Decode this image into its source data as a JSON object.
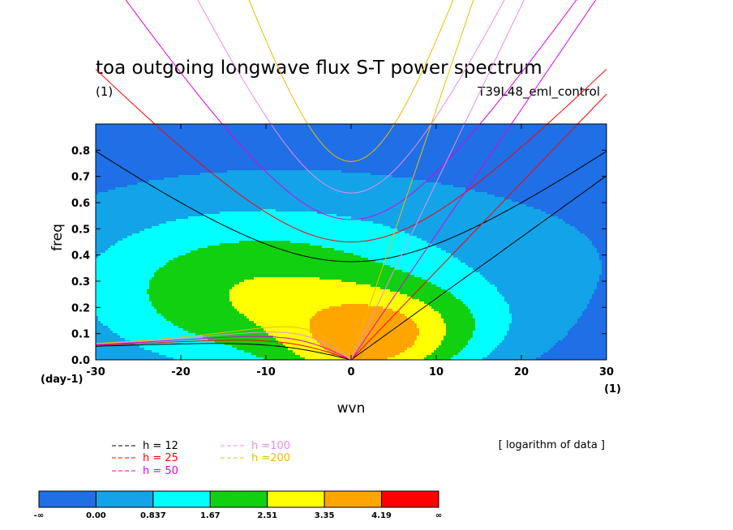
{
  "chart_data": {
    "type": "heatmap",
    "title": "toa outgoing longwave flux S-T power spectrum",
    "subtitle_left": "(1)",
    "subtitle_right": "T39L48_eml_control",
    "xlabel": "wvn",
    "ylabel": "freq",
    "x_unit": "(1)",
    "y_unit": "(day-1)",
    "xlim": [
      -30,
      30
    ],
    "ylim": [
      0,
      0.9
    ],
    "x_ticks": [
      -30,
      -20,
      -10,
      0,
      10,
      20,
      30
    ],
    "x_tick_labels": [
      "-30",
      "-20",
      "-10",
      "0",
      "10",
      "20",
      "30"
    ],
    "y_ticks": [
      0.0,
      0.1,
      0.2,
      0.3,
      0.4,
      0.5,
      0.6,
      0.7,
      0.8
    ],
    "y_tick_labels": [
      "0.0",
      "0.1",
      "0.2",
      "0.3",
      "0.4",
      "0.5",
      "0.6",
      "0.7",
      "0.8"
    ],
    "note": "[ logarithm of data ]",
    "contour_levels": [
      "-∞",
      "0.00",
      "0.837",
      "1.67",
      "2.51",
      "3.35",
      "4.19",
      "∞"
    ],
    "level_colors": [
      "#1f6fe6",
      "#12a3e8",
      "#00ffff",
      "#10d010",
      "#ffff00",
      "#ffa500",
      "#ff0000"
    ],
    "field": {
      "type": "gaussian-mix",
      "base": -0.7,
      "components": [
        {
          "x0": 2,
          "y0": 0.04,
          "sx": 7,
          "sy": 0.14,
          "amp": 2.55
        },
        {
          "x0": -12,
          "y0": 0.22,
          "sx": 14,
          "sy": 0.22,
          "amp": 2.2
        },
        {
          "x0": 10,
          "y0": 0.12,
          "sx": 8,
          "sy": 0.12,
          "amp": 1.1
        },
        {
          "x0": -3,
          "y0": 0.38,
          "sx": 30,
          "sy": 0.28,
          "amp": 1.2
        }
      ]
    },
    "dispersion_legend": [
      {
        "label": "h = 12",
        "h": 12,
        "color": "#000000"
      },
      {
        "label": "h = 25",
        "h": 25,
        "color": "#ff0000"
      },
      {
        "label": "h = 50",
        "h": 50,
        "color": "#e000e0"
      },
      {
        "label": "h =100",
        "h": 100,
        "color": "#ee88ee"
      },
      {
        "label": "h =200",
        "h": 200,
        "color": "#eebb00"
      }
    ]
  }
}
